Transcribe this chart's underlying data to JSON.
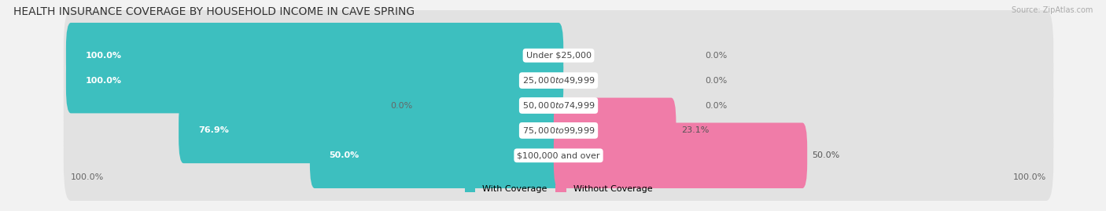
{
  "title": "HEALTH INSURANCE COVERAGE BY HOUSEHOLD INCOME IN CAVE SPRING",
  "source": "Source: ZipAtlas.com",
  "categories": [
    "Under $25,000",
    "$25,000 to $49,999",
    "$50,000 to $74,999",
    "$75,000 to $99,999",
    "$100,000 and over"
  ],
  "with_coverage": [
    100.0,
    100.0,
    0.0,
    76.9,
    50.0
  ],
  "without_coverage": [
    0.0,
    0.0,
    0.0,
    23.1,
    50.0
  ],
  "color_with": "#3DBFBF",
  "color_with_light": "#A8DDE0",
  "color_without": "#F07CA8",
  "background_color": "#F2F2F2",
  "bar_background": "#E2E2E2",
  "legend_with": "With Coverage",
  "legend_without": "Without Coverage",
  "title_fontsize": 10,
  "label_fontsize": 8,
  "source_fontsize": 7,
  "axis_tick_fontsize": 8
}
